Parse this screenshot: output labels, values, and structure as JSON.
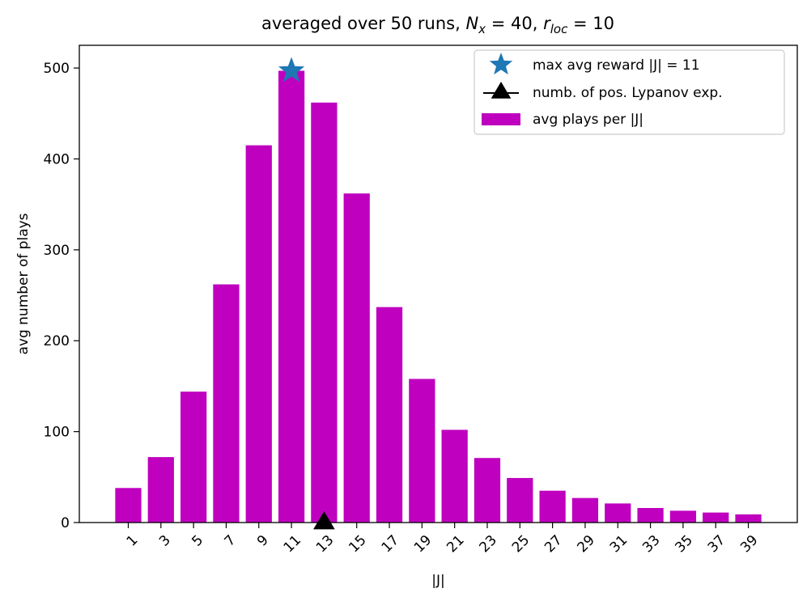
{
  "chart_data": {
    "type": "bar",
    "title": {
      "prefix": "averaged over 50 runs, ",
      "math": [
        {
          "base": "N",
          "sub": "x",
          "rhs": " = 40"
        },
        {
          "base": "r",
          "sub": "loc",
          "rhs": " = 10"
        }
      ]
    },
    "xlabel": "|J|",
    "ylabel": "avg number of plays",
    "categories": [
      "1",
      "3",
      "5",
      "7",
      "9",
      "11",
      "13",
      "15",
      "17",
      "19",
      "21",
      "23",
      "25",
      "27",
      "29",
      "31",
      "33",
      "35",
      "37",
      "39"
    ],
    "x": [
      1,
      3,
      5,
      7,
      9,
      11,
      13,
      15,
      17,
      19,
      21,
      23,
      25,
      27,
      29,
      31,
      33,
      35,
      37,
      39
    ],
    "series": [
      {
        "name": "avg plays per |J|",
        "values": [
          38,
          72,
          144,
          262,
          415,
          497,
          462,
          362,
          237,
          158,
          102,
          71,
          49,
          35,
          27,
          21,
          16,
          13,
          11,
          9
        ]
      }
    ],
    "markers": [
      {
        "name": "max avg reward |J| = 11",
        "shape": "star",
        "x": 11,
        "y": 497
      },
      {
        "name": "numb. of pos. Lypanov exp.",
        "shape": "triangle",
        "x": 13,
        "y": 0
      }
    ],
    "xlim": [
      -2,
      42
    ],
    "ylim": [
      0,
      525
    ],
    "yticks": [
      0,
      100,
      200,
      300,
      400,
      500
    ],
    "xtick_rotation": 45,
    "grid": false,
    "legend_position": "top-right",
    "colors": {
      "bars": "#bf00bf",
      "star": "#1f77b4",
      "triangle": "#000000",
      "legend_border": "#cccccc"
    }
  }
}
